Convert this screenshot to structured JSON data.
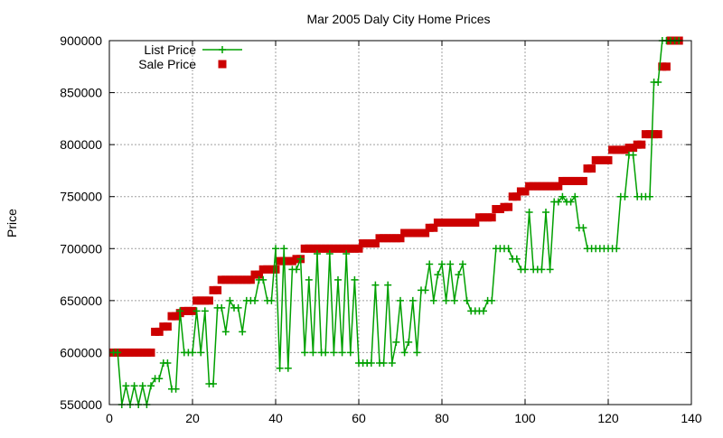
{
  "chart_data": {
    "type": "line",
    "title": "Mar 2005 Daly City Home Prices",
    "xlabel": "",
    "ylabel": "Price",
    "xlim": [
      0,
      140
    ],
    "ylim": [
      550000,
      900000
    ],
    "x_ticks": [
      0,
      20,
      40,
      60,
      80,
      100,
      120,
      140
    ],
    "y_ticks": [
      550000,
      600000,
      650000,
      700000,
      750000,
      800000,
      850000,
      900000
    ],
    "grid": true,
    "legend_position": "top-left",
    "series": [
      {
        "name": "List Price",
        "style": "line-with-plus-markers",
        "color": "#00a000",
        "x": [
          1,
          2,
          3,
          4,
          5,
          6,
          7,
          8,
          9,
          10,
          11,
          12,
          13,
          14,
          15,
          16,
          17,
          18,
          19,
          20,
          21,
          22,
          23,
          24,
          25,
          26,
          27,
          28,
          29,
          30,
          31,
          32,
          33,
          34,
          35,
          36,
          37,
          38,
          39,
          40,
          41,
          42,
          43,
          44,
          45,
          46,
          47,
          48,
          49,
          50,
          51,
          52,
          53,
          54,
          55,
          56,
          57,
          58,
          59,
          60,
          61,
          62,
          63,
          64,
          65,
          66,
          67,
          68,
          69,
          70,
          71,
          72,
          73,
          74,
          75,
          76,
          77,
          78,
          79,
          80,
          81,
          82,
          83,
          84,
          85,
          86,
          87,
          88,
          89,
          90,
          91,
          92,
          93,
          94,
          95,
          96,
          97,
          98,
          99,
          100,
          101,
          102,
          103,
          104,
          105,
          106,
          107,
          108,
          109,
          110,
          111,
          112,
          113,
          114,
          115,
          116,
          117,
          118,
          119,
          120,
          121,
          122,
          123,
          124,
          125,
          126,
          127,
          128,
          129,
          130,
          131,
          132,
          133,
          134,
          135,
          136,
          137
        ],
        "values": [
          600000,
          600000,
          550000,
          568000,
          550000,
          568000,
          550000,
          568000,
          550000,
          568000,
          575000,
          575000,
          590000,
          590000,
          565000,
          565000,
          640000,
          600000,
          600000,
          600000,
          640000,
          600000,
          640000,
          570000,
          570000,
          643000,
          643000,
          620000,
          650000,
          643000,
          643000,
          620000,
          650000,
          650000,
          650000,
          670000,
          670000,
          650000,
          650000,
          700000,
          585000,
          700000,
          585000,
          680000,
          680000,
          690000,
          600000,
          670000,
          600000,
          695000,
          600000,
          600000,
          695000,
          600000,
          670000,
          600000,
          695000,
          600000,
          670000,
          590000,
          590000,
          590000,
          590000,
          665000,
          590000,
          590000,
          665000,
          590000,
          610000,
          650000,
          600000,
          610000,
          650000,
          600000,
          660000,
          660000,
          685000,
          650000,
          675000,
          685000,
          650000,
          685000,
          650000,
          675000,
          685000,
          650000,
          640000,
          640000,
          640000,
          640000,
          650000,
          650000,
          700000,
          700000,
          700000,
          700000,
          690000,
          690000,
          680000,
          680000,
          735000,
          680000,
          680000,
          680000,
          735000,
          680000,
          745000,
          745000,
          750000,
          745000,
          745000,
          750000,
          720000,
          720000,
          700000,
          700000,
          700000,
          700000,
          700000,
          700000,
          700000,
          700000,
          750000,
          750000,
          790000,
          790000,
          750000,
          750000,
          750000,
          750000,
          860000,
          860000,
          900000,
          900000,
          900000,
          900000,
          900000
        ]
      },
      {
        "name": "Sale Price",
        "style": "square-markers",
        "color": "#cc0000",
        "x": [
          1,
          2,
          3,
          4,
          5,
          6,
          7,
          8,
          9,
          10,
          11,
          12,
          13,
          14,
          15,
          16,
          17,
          18,
          19,
          20,
          21,
          22,
          23,
          24,
          25,
          26,
          27,
          28,
          29,
          30,
          31,
          32,
          33,
          34,
          35,
          36,
          37,
          38,
          39,
          40,
          41,
          42,
          43,
          44,
          45,
          46,
          47,
          48,
          49,
          50,
          51,
          52,
          53,
          54,
          55,
          56,
          57,
          58,
          59,
          60,
          61,
          62,
          63,
          64,
          65,
          66,
          67,
          68,
          69,
          70,
          71,
          72,
          73,
          74,
          75,
          76,
          77,
          78,
          79,
          80,
          81,
          82,
          83,
          84,
          85,
          86,
          87,
          88,
          89,
          90,
          91,
          92,
          93,
          94,
          95,
          96,
          97,
          98,
          99,
          100,
          101,
          102,
          103,
          104,
          105,
          106,
          107,
          108,
          109,
          110,
          111,
          112,
          113,
          114,
          115,
          116,
          117,
          118,
          119,
          120,
          121,
          122,
          123,
          124,
          125,
          126,
          127,
          128,
          129,
          130,
          131,
          132,
          133,
          134,
          135,
          136,
          137
        ],
        "values": [
          600000,
          600000,
          600000,
          600000,
          600000,
          600000,
          600000,
          600000,
          600000,
          600000,
          620000,
          620000,
          625000,
          625000,
          635000,
          635000,
          638000,
          640000,
          640000,
          640000,
          650000,
          650000,
          650000,
          650000,
          660000,
          660000,
          670000,
          670000,
          670000,
          670000,
          670000,
          670000,
          670000,
          670000,
          675000,
          675000,
          680000,
          680000,
          680000,
          680000,
          688000,
          688000,
          688000,
          688000,
          690000,
          690000,
          700000,
          700000,
          700000,
          700000,
          700000,
          700000,
          700000,
          700000,
          700000,
          700000,
          700000,
          700000,
          700000,
          700000,
          705000,
          705000,
          705000,
          705000,
          710000,
          710000,
          710000,
          710000,
          710000,
          710000,
          715000,
          715000,
          715000,
          715000,
          715000,
          715000,
          720000,
          720000,
          725000,
          725000,
          725000,
          725000,
          725000,
          725000,
          725000,
          725000,
          725000,
          725000,
          730000,
          730000,
          730000,
          730000,
          738000,
          738000,
          740000,
          740000,
          750000,
          750000,
          755000,
          755000,
          760000,
          760000,
          760000,
          760000,
          760000,
          760000,
          760000,
          760000,
          765000,
          765000,
          765000,
          765000,
          765000,
          765000,
          777000,
          777000,
          785000,
          785000,
          785000,
          785000,
          795000,
          795000,
          795000,
          795000,
          797000,
          797000,
          800000,
          800000,
          810000,
          810000,
          810000,
          810000,
          875000,
          875000,
          900000,
          900000,
          900000
        ]
      }
    ]
  }
}
